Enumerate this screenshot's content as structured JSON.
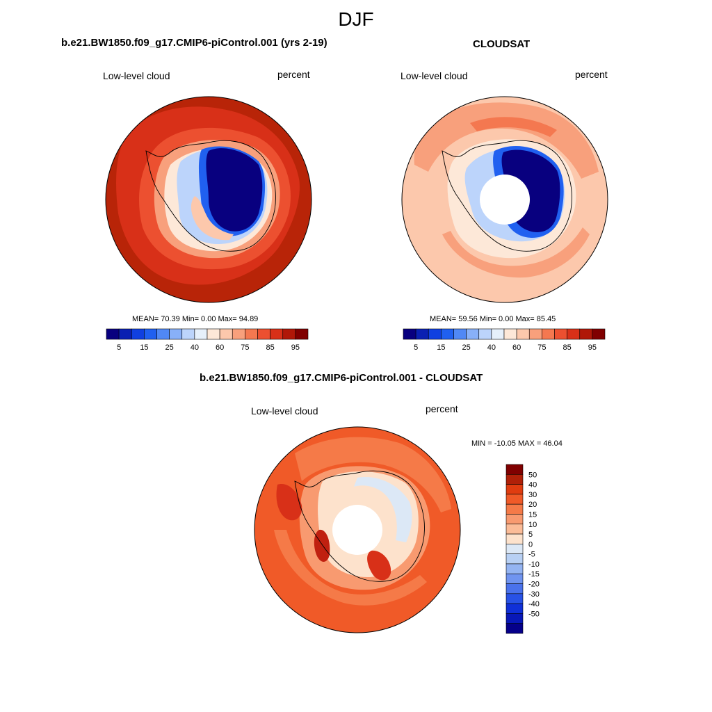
{
  "page": {
    "title": "DJF"
  },
  "panels": {
    "model": {
      "title": "b.e21.BW1850.f09_g17.CMIP6-piControl.001 (yrs 2-19)",
      "left_label": "Low-level cloud",
      "right_label": "percent",
      "stats": "MEAN=  70.39  Min=   0.00  Max=  94.89"
    },
    "obs": {
      "title": "CLOUDSAT",
      "left_label": "Low-level cloud",
      "right_label": "percent",
      "stats": "MEAN=  59.56  Min=   0.00  Max=  85.45"
    },
    "diff": {
      "title": "b.e21.BW1850.f09_g17.CMIP6-piControl.001 - CLOUDSAT",
      "left_label": "Low-level cloud",
      "right_label": "percent",
      "stats": "MIN = -10.05 MAX =  46.04"
    }
  },
  "colorbars": {
    "abs": {
      "colors": [
        "#08007f",
        "#0a20b2",
        "#1040e0",
        "#2060f0",
        "#5088f5",
        "#88b0f8",
        "#bcd4fb",
        "#e6f0fb",
        "#fde8d8",
        "#fcc8ac",
        "#f8a07c",
        "#f47850",
        "#ec5030",
        "#d83018",
        "#b01808",
        "#800000"
      ],
      "tick_labels": [
        "5",
        "15",
        "25",
        "40",
        "60",
        "75",
        "85",
        "95"
      ]
    },
    "diff": {
      "colors": [
        "#800000",
        "#b02008",
        "#e03c10",
        "#f05a28",
        "#f57a48",
        "#f89a70",
        "#fbbc98",
        "#fde2cc",
        "#dce8f6",
        "#b8d0f4",
        "#94b4f2",
        "#7094f0",
        "#4a72ec",
        "#2852e6",
        "#1030d8",
        "#0818b8",
        "#05008a"
      ],
      "tick_labels": [
        "50",
        "40",
        "30",
        "20",
        "15",
        "10",
        "5",
        "0",
        "-5",
        "-10",
        "-15",
        "-20",
        "-30",
        "-40",
        "-50"
      ]
    }
  }
}
